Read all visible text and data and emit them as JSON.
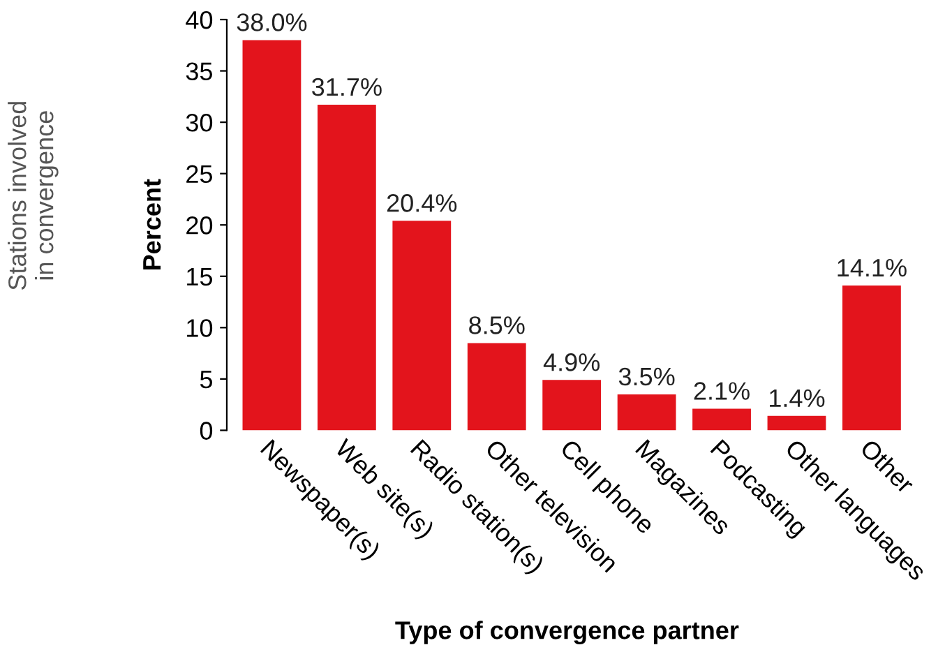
{
  "chart_data": {
    "type": "bar",
    "xlabel": "Type of convergence partner",
    "ylabel": "Percent",
    "annotations": [
      "Stations involved\nin convergence"
    ],
    "categories": [
      "Newspaper(s)",
      "Web site(s)",
      "Radio station(s)",
      "Other television",
      "Cell phone",
      "Magazines",
      "Podcasting",
      "Other languages",
      "Other"
    ],
    "values": [
      38.0,
      31.7,
      20.4,
      8.5,
      4.9,
      3.5,
      2.1,
      1.4,
      14.1
    ],
    "value_labels": [
      "38.0%",
      "31.7%",
      "20.4%",
      "8.5%",
      "4.9%",
      "3.5%",
      "2.1%",
      "1.4%",
      "14.1%"
    ],
    "color": "#e3141c",
    "ylim": [
      0,
      40
    ],
    "yticks": [
      0,
      5,
      10,
      15,
      20,
      25,
      30,
      35,
      40
    ],
    "grid": false,
    "legend": false
  }
}
